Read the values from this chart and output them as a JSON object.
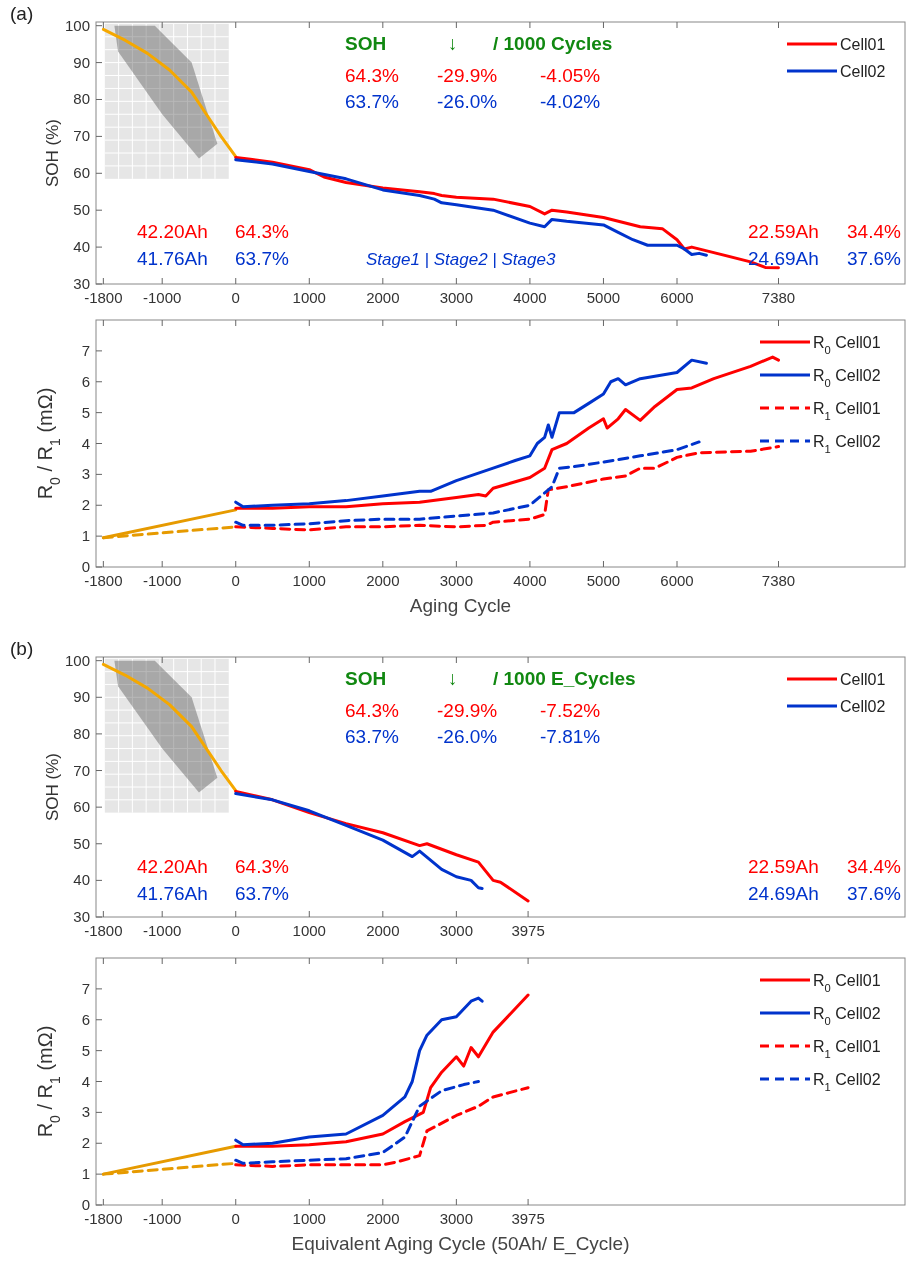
{
  "chart_data": [
    {
      "type": "line",
      "title": "(a)",
      "ylabel": "SOH (%)",
      "xlim": [
        -1900,
        9100
      ],
      "xticks": [
        -1800,
        -1000,
        0,
        1000,
        2000,
        3000,
        4000,
        5000,
        6000,
        7380
      ],
      "ylim": [
        30,
        101
      ],
      "yticks": [
        30,
        40,
        50,
        60,
        70,
        80,
        90,
        100
      ],
      "legend": "top right",
      "grid": false,
      "marker": "none",
      "annotations": [
        "SOH",
        "↓",
        "/ 1000 Cycles",
        "64.3%",
        "-29.9%",
        "-4.05%",
        "63.7%",
        "-26.0%",
        "-4.02%",
        "42.20Ah",
        "64.3%",
        "41.76Ah",
        "63.7%",
        "22.59Ah",
        "34.4%",
        "24.69Ah",
        "37.6%",
        "Stage1 | Stage2 | Stage3"
      ],
      "series": [
        {
          "color": "#f5a800",
          "x": [
            -1800,
            -1500,
            -1200,
            -900,
            -600,
            -400,
            -200,
            0
          ],
          "values": [
            99,
            96,
            92.5,
            88,
            82,
            76,
            70,
            64.5
          ]
        },
        {
          "name": "Cell01",
          "color": "#ff0000",
          "x": [
            0,
            200,
            500,
            1000,
            1200,
            1500,
            2000,
            2500,
            2700,
            2800,
            3000,
            3500,
            4000,
            4200,
            4300,
            4500,
            5000,
            5500,
            5800,
            6000,
            6100,
            6200,
            6500,
            7000,
            7200,
            7380
          ],
          "values": [
            64.3,
            63.8,
            63,
            61,
            59,
            57.5,
            56,
            55,
            54.5,
            54,
            53.5,
            53,
            51,
            49,
            50,
            49.5,
            48,
            45.5,
            45,
            42,
            39.5,
            40,
            38.5,
            36,
            34.5,
            34.4
          ]
        },
        {
          "name": "Cell02",
          "color": "#0033cc",
          "x": [
            0,
            500,
            1000,
            1500,
            2000,
            2500,
            2700,
            2800,
            3000,
            3500,
            4000,
            4200,
            4300,
            4500,
            5000,
            5200,
            5400,
            5600,
            6000,
            6100,
            6200,
            6300,
            6400
          ],
          "values": [
            63.7,
            62.5,
            60.5,
            58.5,
            55.5,
            54,
            53,
            52,
            51.5,
            50,
            46.5,
            45.5,
            47.5,
            47,
            46,
            44,
            42,
            40.5,
            40.5,
            39.5,
            38,
            38.3,
            37.8
          ]
        }
      ]
    },
    {
      "type": "line",
      "xlabel": "Aging Cycle",
      "ylabel": "R$_{0}$ / R$_{1}$ (mΩ)",
      "xlim": [
        -1900,
        9100
      ],
      "xticks": [
        -1800,
        -1000,
        0,
        1000,
        2000,
        3000,
        4000,
        5000,
        6000,
        7380
      ],
      "ylim": [
        0,
        8
      ],
      "yticks": [
        0,
        1,
        2,
        3,
        4,
        5,
        6,
        7
      ],
      "legend": "top right",
      "grid": false,
      "marker": "none",
      "series": [
        {
          "color": "#e69a00",
          "line_style": "solid",
          "x": [
            -1800,
            0
          ],
          "values": [
            0.95,
            1.85
          ]
        },
        {
          "color": "#e69a00",
          "line_style": "dashed",
          "x": [
            -1800,
            0
          ],
          "values": [
            0.95,
            1.3
          ]
        },
        {
          "name": "R$_{0}$ Cell01",
          "color": "#ff0000",
          "line_style": "solid",
          "x": [
            0,
            500,
            1000,
            1500,
            2000,
            2500,
            3000,
            3300,
            3400,
            3500,
            4000,
            4200,
            4300,
            4500,
            4800,
            5000,
            5050,
            5200,
            5300,
            5500,
            5700,
            6000,
            6200,
            6500,
            7000,
            7300,
            7380
          ],
          "values": [
            1.9,
            1.9,
            1.95,
            1.95,
            2.05,
            2.1,
            2.25,
            2.35,
            2.3,
            2.55,
            2.9,
            3.2,
            3.8,
            4,
            4.5,
            4.8,
            4.5,
            4.8,
            5.1,
            4.75,
            5.2,
            5.75,
            5.8,
            6.1,
            6.5,
            6.8,
            6.7
          ]
        },
        {
          "name": "R$_{0}$ Cell02",
          "color": "#0033cc",
          "line_style": "solid",
          "x": [
            0,
            100,
            500,
            1000,
            1500,
            2000,
            2500,
            2650,
            3000,
            3500,
            3800,
            4000,
            4100,
            4200,
            4250,
            4300,
            4400,
            4600,
            4800,
            5000,
            5100,
            5200,
            5300,
            5500,
            6000,
            6200,
            6400
          ],
          "values": [
            2.1,
            1.95,
            2,
            2.05,
            2.15,
            2.3,
            2.45,
            2.45,
            2.8,
            3.2,
            3.45,
            3.6,
            4,
            4.2,
            4.6,
            4.2,
            5,
            5,
            5.3,
            5.6,
            6,
            6.1,
            5.9,
            6.1,
            6.3,
            6.7,
            6.6
          ]
        },
        {
          "name": "R$_{1}$ Cell01",
          "color": "#ff0000",
          "line_style": "dashed",
          "x": [
            0,
            500,
            1000,
            1500,
            2000,
            2500,
            3000,
            3400,
            3500,
            4000,
            4200,
            4250,
            4500,
            5000,
            5300,
            5500,
            5700,
            6000,
            6300,
            7000,
            7380
          ],
          "values": [
            1.3,
            1.25,
            1.2,
            1.3,
            1.3,
            1.35,
            1.3,
            1.35,
            1.45,
            1.55,
            1.7,
            2.5,
            2.6,
            2.85,
            2.95,
            3.2,
            3.2,
            3.55,
            3.7,
            3.75,
            3.9
          ]
        },
        {
          "name": "R$_{1}$ Cell02",
          "color": "#0033cc",
          "line_style": "dashed",
          "x": [
            0,
            100,
            500,
            1000,
            1500,
            2000,
            2500,
            3000,
            3500,
            4000,
            4300,
            4400,
            4600,
            5000,
            5500,
            6000,
            6300
          ],
          "values": [
            1.45,
            1.35,
            1.35,
            1.4,
            1.5,
            1.55,
            1.55,
            1.65,
            1.75,
            2,
            2.6,
            3.2,
            3.25,
            3.4,
            3.6,
            3.8,
            4.05
          ]
        }
      ]
    },
    {
      "type": "line",
      "title": "(b)",
      "ylabel": "SOH (%)",
      "xlim": [
        -1900,
        9100
      ],
      "xticks": [
        -1800,
        -1000,
        0,
        1000,
        2000,
        3000,
        3975
      ],
      "ylim": [
        30,
        101
      ],
      "yticks": [
        30,
        40,
        50,
        60,
        70,
        80,
        90,
        100
      ],
      "legend": "top right",
      "grid": false,
      "marker": "none",
      "annotations": [
        "SOH",
        "↓",
        "/ 1000 E_Cycles",
        "64.3%",
        "-29.9%",
        "-7.52%",
        "63.7%",
        "-26.0%",
        "-7.81%",
        "42.20Ah",
        "64.3%",
        "41.76Ah",
        "63.7%",
        "22.59Ah",
        "34.4%",
        "24.69Ah",
        "37.6%"
      ],
      "series": [
        {
          "color": "#f5a800",
          "x": [
            -1800,
            -1500,
            -1200,
            -900,
            -600,
            -400,
            -200,
            0
          ],
          "values": [
            99,
            96,
            92.5,
            88,
            82,
            76,
            70,
            64.5
          ]
        },
        {
          "name": "Cell01",
          "color": "#ff0000",
          "x": [
            0,
            500,
            1000,
            1500,
            2000,
            2500,
            2600,
            3000,
            3300,
            3500,
            3600,
            3975
          ],
          "values": [
            64.3,
            62,
            58.5,
            55.5,
            53,
            49.5,
            50,
            47,
            45,
            40,
            39.5,
            34.4
          ]
        },
        {
          "name": "Cell02",
          "color": "#0033cc",
          "x": [
            0,
            500,
            1000,
            1500,
            2000,
            2400,
            2500,
            2800,
            3000,
            3200,
            3300,
            3350
          ],
          "values": [
            63.7,
            62,
            59,
            55,
            51,
            46.5,
            48,
            43,
            41,
            40,
            38,
            37.8
          ]
        }
      ]
    },
    {
      "type": "line",
      "xlabel": "Equivalent Aging Cycle (50Ah/ E_Cycle)",
      "ylabel": "R$_{0}$ / R$_{1}$ (mΩ)",
      "xlim": [
        -1900,
        9100
      ],
      "xticks": [
        -1800,
        -1000,
        0,
        1000,
        2000,
        3000,
        3975
      ],
      "ylim": [
        0,
        8
      ],
      "yticks": [
        0,
        1,
        2,
        3,
        4,
        5,
        6,
        7
      ],
      "legend": "top right",
      "grid": false,
      "marker": "none",
      "series": [
        {
          "color": "#e69a00",
          "line_style": "solid",
          "x": [
            -1800,
            0
          ],
          "values": [
            1,
            1.9
          ]
        },
        {
          "color": "#e69a00",
          "line_style": "dashed",
          "x": [
            -1800,
            0
          ],
          "values": [
            1,
            1.35
          ]
        },
        {
          "name": "R$_{0}$ Cell01",
          "color": "#ff0000",
          "line_style": "solid",
          "x": [
            0,
            500,
            1000,
            1500,
            2000,
            2300,
            2550,
            2650,
            2800,
            3000,
            3100,
            3200,
            3300,
            3500,
            3975
          ],
          "values": [
            1.9,
            1.9,
            1.95,
            2.05,
            2.3,
            2.7,
            3,
            3.8,
            4.3,
            4.8,
            4.5,
            5.1,
            4.8,
            5.6,
            6.8
          ]
        },
        {
          "name": "R$_{0}$ Cell02",
          "color": "#0033cc",
          "line_style": "solid",
          "x": [
            0,
            100,
            500,
            1000,
            1500,
            2000,
            2300,
            2400,
            2500,
            2600,
            2800,
            3000,
            3200,
            3300,
            3350
          ],
          "values": [
            2.1,
            1.95,
            2,
            2.2,
            2.3,
            2.9,
            3.5,
            4,
            5,
            5.5,
            6,
            6.1,
            6.6,
            6.7,
            6.6
          ]
        },
        {
          "name": "R$_{1}$ Cell01",
          "color": "#ff0000",
          "line_style": "dashed",
          "x": [
            0,
            500,
            1000,
            1500,
            2000,
            2200,
            2500,
            2600,
            3000,
            3300,
            3500,
            3975
          ],
          "values": [
            1.3,
            1.25,
            1.3,
            1.3,
            1.3,
            1.4,
            1.6,
            2.4,
            2.9,
            3.2,
            3.5,
            3.8
          ]
        },
        {
          "name": "R$_{1}$ Cell02",
          "color": "#0033cc",
          "line_style": "dashed",
          "x": [
            0,
            100,
            500,
            1000,
            1500,
            2000,
            2300,
            2500,
            2800,
            3100,
            3300
          ],
          "values": [
            1.45,
            1.35,
            1.4,
            1.45,
            1.5,
            1.7,
            2.2,
            3.2,
            3.7,
            3.9,
            4
          ]
        }
      ]
    }
  ]
}
